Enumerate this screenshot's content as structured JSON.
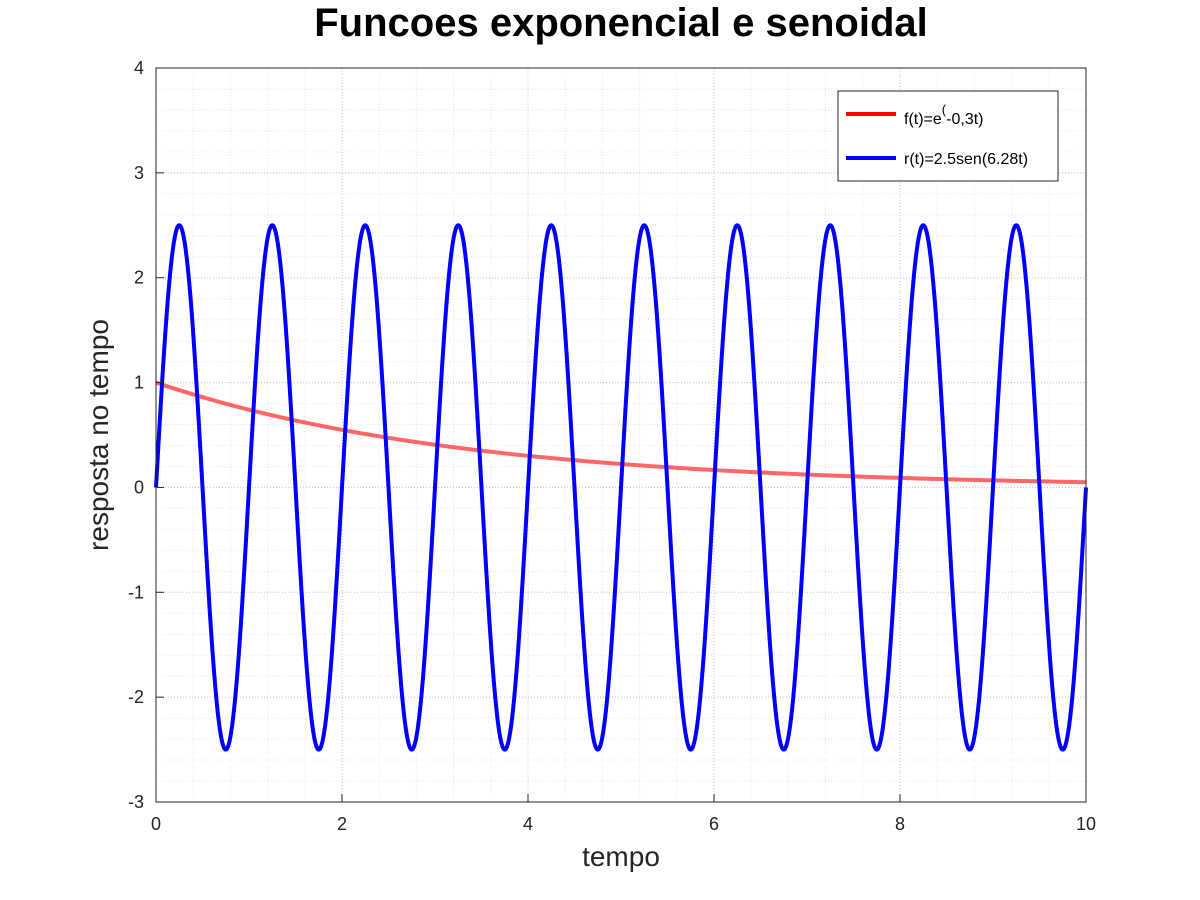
{
  "chart_data": {
    "type": "line",
    "title": "Funcoes exponencial e senoidal",
    "xlabel": "tempo",
    "ylabel": "resposta no tempo",
    "xlim": [
      0,
      10
    ],
    "ylim": [
      -3,
      4
    ],
    "x_ticks": [
      0,
      2,
      4,
      6,
      8,
      10
    ],
    "y_ticks": [
      -3,
      -2,
      -1,
      0,
      1,
      2,
      3,
      4
    ],
    "grid": true,
    "minor_grid": true,
    "legend_position": "top-right",
    "series": [
      {
        "name": "f(t)=e^(-0,3t)",
        "legend_base": "f(t)=e",
        "legend_sup": "(",
        "legend_tail": "-0,3t)",
        "color": "#ff6666",
        "legend_color": "#ff0000",
        "x": [
          0,
          0.5,
          1,
          1.5,
          2,
          2.5,
          3,
          3.5,
          4,
          4.5,
          5,
          5.5,
          6,
          6.5,
          7,
          7.5,
          8,
          8.5,
          9,
          9.5,
          10
        ],
        "y": [
          1.0,
          0.861,
          0.741,
          0.638,
          0.549,
          0.472,
          0.407,
          0.35,
          0.301,
          0.259,
          0.223,
          0.192,
          0.165,
          0.142,
          0.122,
          0.105,
          0.091,
          0.078,
          0.067,
          0.058,
          0.05
        ]
      },
      {
        "name": "r(t)=2.5sen(6.28t)",
        "color": "#0000ff",
        "x": [
          0,
          0.25,
          0.5,
          0.75,
          1,
          1.25,
          1.5,
          1.75,
          2,
          2.25,
          2.5,
          2.75,
          3,
          3.25,
          3.5,
          3.75,
          4,
          4.25,
          4.5,
          4.75,
          5,
          5.25,
          5.5,
          5.75,
          6,
          6.25,
          6.5,
          6.75,
          7,
          7.25,
          7.5,
          7.75,
          8,
          8.25,
          8.5,
          8.75,
          9,
          9.25,
          9.5,
          9.75,
          10
        ],
        "y": [
          0,
          2.5,
          0,
          -2.5,
          0,
          2.5,
          0,
          -2.5,
          0,
          2.5,
          0,
          -2.5,
          0,
          2.5,
          0,
          -2.5,
          0,
          2.5,
          0,
          -2.5,
          0,
          2.5,
          0,
          -2.5,
          0,
          2.5,
          0,
          -2.5,
          0,
          2.5,
          0,
          -2.5,
          0,
          2.5,
          0,
          -2.5,
          0,
          2.5,
          0,
          -2.5,
          0
        ]
      }
    ]
  }
}
